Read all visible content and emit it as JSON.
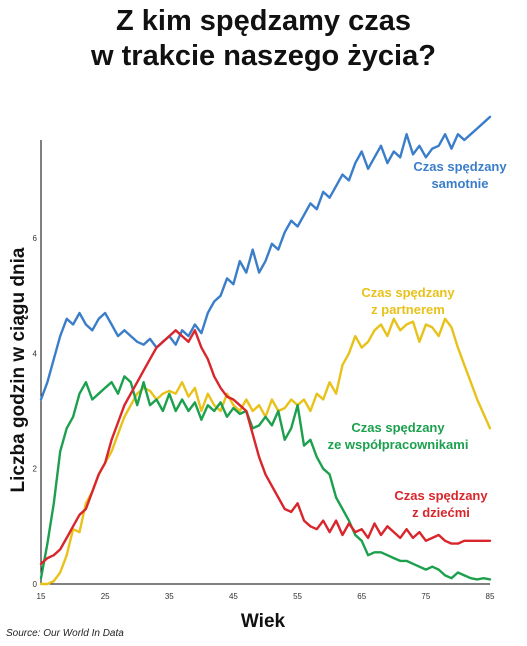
{
  "title_line1": "Z kim spędzamy czas",
  "title_line2": "w trakcie naszego życia?",
  "source": "Source: Our World In Data",
  "chart_data": {
    "type": "line",
    "title": "Z kim spędzamy czas w trakcie naszego życia?",
    "xlabel": "Wiek",
    "ylabel": "Liczba godzin w ciągu dnia",
    "xlim": [
      15,
      85
    ],
    "ylim": [
      0,
      7.7
    ],
    "x_ticks": [
      15,
      25,
      35,
      45,
      55,
      65,
      75,
      85
    ],
    "y_ticks": [
      0,
      2,
      4,
      6
    ],
    "grid": false,
    "series": [
      {
        "name": "Czas spędzany samotnie",
        "label_lines": [
          "Czas spędzany",
          "samotnie"
        ],
        "color": "#3a7dc9",
        "x": [
          15,
          16,
          17,
          18,
          19,
          20,
          21,
          22,
          23,
          24,
          25,
          26,
          27,
          28,
          29,
          30,
          31,
          32,
          33,
          34,
          35,
          36,
          37,
          38,
          39,
          40,
          41,
          42,
          43,
          44,
          45,
          46,
          47,
          48,
          49,
          50,
          51,
          52,
          53,
          54,
          55,
          56,
          57,
          58,
          59,
          60,
          61,
          62,
          63,
          64,
          65,
          66,
          67,
          68,
          69,
          70,
          71,
          72,
          73,
          74,
          75,
          76,
          77,
          78,
          79,
          80,
          81,
          82,
          83,
          84,
          85
        ],
        "values": [
          3.2,
          3.5,
          3.9,
          4.3,
          4.6,
          4.5,
          4.7,
          4.5,
          4.4,
          4.6,
          4.7,
          4.5,
          4.3,
          4.4,
          4.3,
          4.2,
          4.15,
          4.25,
          4.1,
          4.2,
          4.3,
          4.15,
          4.4,
          4.3,
          4.5,
          4.35,
          4.7,
          4.9,
          5.0,
          5.3,
          5.2,
          5.6,
          5.4,
          5.8,
          5.4,
          5.6,
          5.9,
          5.8,
          6.1,
          6.3,
          6.2,
          6.4,
          6.6,
          6.5,
          6.8,
          6.7,
          6.9,
          7.1,
          7.0,
          7.3,
          7.5,
          7.2,
          7.4,
          7.6,
          7.3,
          7.5,
          7.4,
          7.8,
          7.45,
          7.6,
          7.4,
          7.55,
          7.6,
          7.8,
          7.55,
          7.8,
          7.7,
          7.8,
          7.9,
          8.0,
          8.1
        ]
      },
      {
        "name": "Czas spędzany z partnerem",
        "label_lines": [
          "Czas spędzany",
          "z partnerem"
        ],
        "color": "#e8c21a",
        "x": [
          15,
          16,
          17,
          18,
          19,
          20,
          21,
          22,
          23,
          24,
          25,
          26,
          27,
          28,
          29,
          30,
          31,
          32,
          33,
          34,
          35,
          36,
          37,
          38,
          39,
          40,
          41,
          42,
          43,
          44,
          45,
          46,
          47,
          48,
          49,
          50,
          51,
          52,
          53,
          54,
          55,
          56,
          57,
          58,
          59,
          60,
          61,
          62,
          63,
          64,
          65,
          66,
          67,
          68,
          69,
          70,
          71,
          72,
          73,
          74,
          75,
          76,
          77,
          78,
          79,
          80,
          81,
          82,
          83,
          84,
          85
        ],
        "values": [
          0.0,
          0.0,
          0.05,
          0.2,
          0.5,
          0.95,
          0.9,
          1.4,
          1.6,
          1.9,
          2.1,
          2.3,
          2.6,
          2.9,
          3.1,
          3.3,
          3.4,
          3.35,
          3.2,
          3.3,
          3.35,
          3.3,
          3.5,
          3.25,
          3.4,
          3.0,
          3.3,
          3.1,
          3.0,
          3.3,
          3.1,
          3.0,
          3.2,
          3.0,
          3.1,
          2.9,
          3.2,
          3.0,
          3.05,
          3.2,
          3.1,
          3.2,
          3.0,
          3.3,
          3.2,
          3.5,
          3.3,
          3.8,
          4.0,
          4.3,
          4.1,
          4.2,
          4.4,
          4.5,
          4.3,
          4.6,
          4.4,
          4.5,
          4.55,
          4.2,
          4.5,
          4.45,
          4.3,
          4.6,
          4.45,
          4.1,
          3.8,
          3.5,
          3.2,
          2.95,
          2.7
        ]
      },
      {
        "name": "Czas spędzany ze współpracownikami",
        "label_lines": [
          "Czas spędzany",
          "ze współpracownikami"
        ],
        "color": "#1ca04e",
        "x": [
          15,
          16,
          17,
          18,
          19,
          20,
          21,
          22,
          23,
          24,
          25,
          26,
          27,
          28,
          29,
          30,
          31,
          32,
          33,
          34,
          35,
          36,
          37,
          38,
          39,
          40,
          41,
          42,
          43,
          44,
          45,
          46,
          47,
          48,
          49,
          50,
          51,
          52,
          53,
          54,
          55,
          56,
          57,
          58,
          59,
          60,
          61,
          62,
          63,
          64,
          65,
          66,
          67,
          68,
          69,
          70,
          71,
          72,
          73,
          74,
          75,
          76,
          77,
          78,
          79,
          80,
          81,
          82,
          83,
          84,
          85
        ],
        "values": [
          0.1,
          0.7,
          1.4,
          2.3,
          2.7,
          2.9,
          3.3,
          3.5,
          3.2,
          3.3,
          3.4,
          3.5,
          3.3,
          3.6,
          3.5,
          3.1,
          3.5,
          3.1,
          3.2,
          3.0,
          3.3,
          3.0,
          3.2,
          3.0,
          3.15,
          2.85,
          3.1,
          3.0,
          3.15,
          2.9,
          3.05,
          2.95,
          3.0,
          2.7,
          2.75,
          2.9,
          2.75,
          3.0,
          2.5,
          2.7,
          3.1,
          2.4,
          2.5,
          2.2,
          2.0,
          1.9,
          1.5,
          1.3,
          1.1,
          0.85,
          0.75,
          0.5,
          0.55,
          0.55,
          0.5,
          0.45,
          0.4,
          0.4,
          0.35,
          0.3,
          0.25,
          0.3,
          0.25,
          0.15,
          0.1,
          0.2,
          0.15,
          0.1,
          0.08,
          0.1,
          0.08
        ]
      },
      {
        "name": "Czas spędzany z dziećmi",
        "label_lines": [
          "Czas spędzany",
          "z dziećmi"
        ],
        "color": "#d8262c",
        "x": [
          15,
          16,
          17,
          18,
          19,
          20,
          21,
          22,
          23,
          24,
          25,
          26,
          27,
          28,
          29,
          30,
          31,
          32,
          33,
          34,
          35,
          36,
          37,
          38,
          39,
          40,
          41,
          42,
          43,
          44,
          45,
          46,
          47,
          48,
          49,
          50,
          51,
          52,
          53,
          54,
          55,
          56,
          57,
          58,
          59,
          60,
          61,
          62,
          63,
          64,
          65,
          66,
          67,
          68,
          69,
          70,
          71,
          72,
          73,
          74,
          75,
          76,
          77,
          78,
          79,
          80,
          81,
          82,
          83,
          84,
          85
        ],
        "values": [
          0.35,
          0.45,
          0.5,
          0.6,
          0.8,
          1.0,
          1.2,
          1.3,
          1.6,
          1.9,
          2.1,
          2.5,
          2.8,
          3.1,
          3.3,
          3.5,
          3.7,
          3.9,
          4.1,
          4.2,
          4.3,
          4.4,
          4.3,
          4.2,
          4.4,
          4.1,
          3.9,
          3.6,
          3.4,
          3.25,
          3.2,
          3.1,
          3.0,
          2.6,
          2.2,
          1.9,
          1.7,
          1.5,
          1.3,
          1.25,
          1.4,
          1.1,
          1.0,
          0.95,
          1.1,
          0.9,
          1.1,
          0.85,
          1.05,
          0.9,
          0.95,
          0.8,
          1.05,
          0.85,
          1.0,
          0.9,
          0.8,
          0.95,
          0.8,
          0.9,
          0.75,
          0.8,
          0.85,
          0.75,
          0.7,
          0.7,
          0.75,
          0.75,
          0.75,
          0.75,
          0.75
        ]
      }
    ]
  }
}
